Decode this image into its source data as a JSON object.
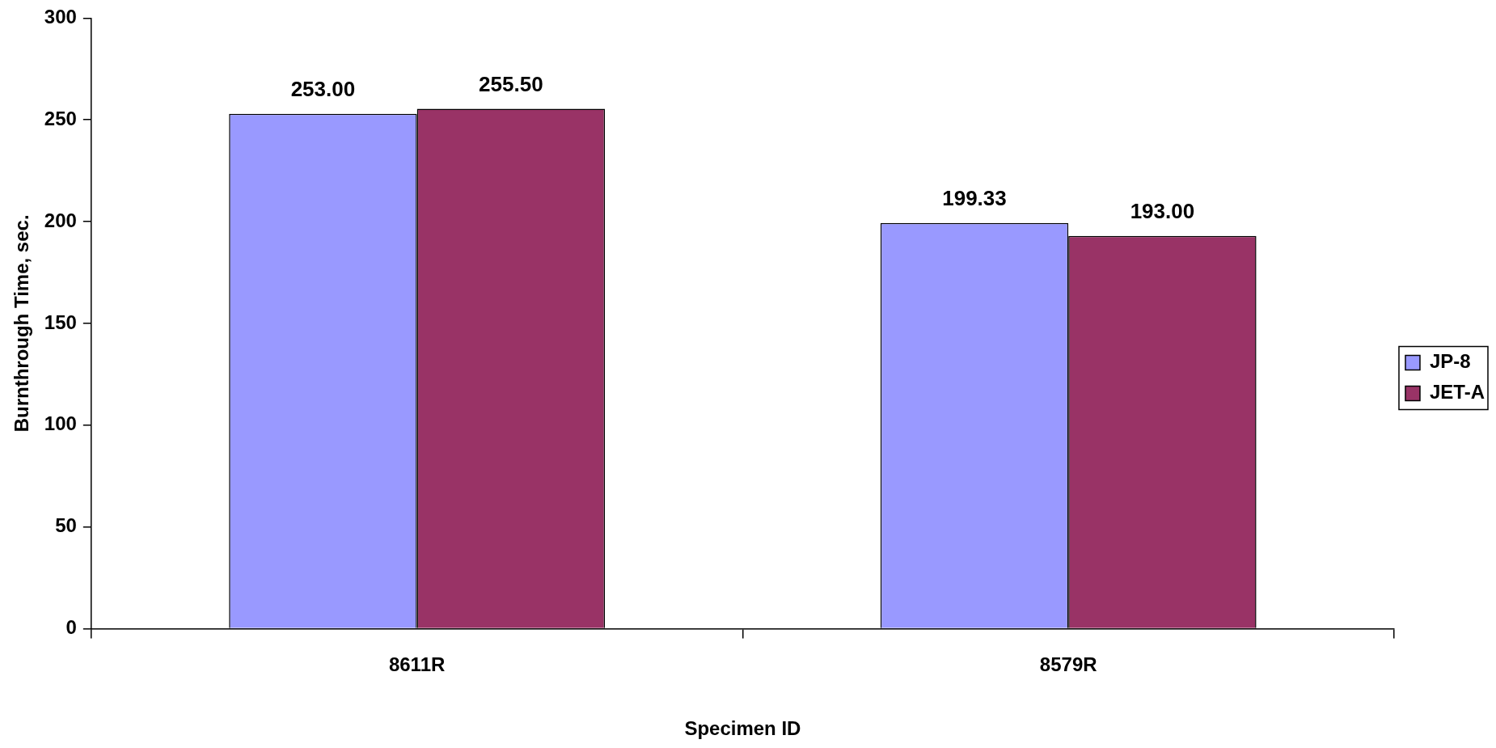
{
  "chart_data": {
    "type": "bar",
    "xlabel": "Specimen ID",
    "ylabel": "Burnthrough Time, sec.",
    "categories": [
      "8611R",
      "8579R"
    ],
    "series": [
      {
        "name": "JP-8",
        "color": "#9999ff",
        "values": [
          253.0,
          199.33
        ],
        "value_labels": [
          "253.00",
          "199.33"
        ]
      },
      {
        "name": "JET-A",
        "color": "#993366",
        "values": [
          255.5,
          193.0
        ],
        "value_labels": [
          "255.50",
          "193.00"
        ]
      }
    ],
    "ylim": [
      0,
      300
    ],
    "yticks": [
      0,
      50,
      100,
      150,
      200,
      250,
      300
    ],
    "grid": false,
    "legend": "right"
  }
}
